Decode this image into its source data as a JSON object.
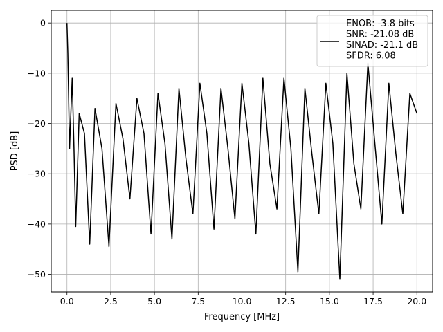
{
  "chart_data": {
    "type": "line",
    "xlabel": "Frequency [MHz]",
    "ylabel": "PSD [dB]",
    "xlim": [
      -0.9,
      20.9
    ],
    "ylim": [
      -53.5,
      2.5
    ],
    "xticks": [
      0.0,
      2.5,
      5.0,
      7.5,
      10.0,
      12.5,
      15.0,
      17.5,
      20.0
    ],
    "xtick_labels": [
      "0.0",
      "2.5",
      "5.0",
      "7.5",
      "10.0",
      "12.5",
      "15.0",
      "17.5",
      "20.0"
    ],
    "yticks": [
      0,
      -10,
      -20,
      -30,
      -40,
      -50
    ],
    "ytick_labels": [
      "0",
      "−10",
      "−20",
      "−30",
      "−40",
      "−50"
    ],
    "grid": true,
    "legend_position": "top-right",
    "legend_lines": [
      "ENOB: -3.8 bits",
      "SNR: -21.08 dB",
      "SINAD: -21.1 dB",
      "SFDR: 6.08"
    ],
    "series": [
      {
        "color": "#000000",
        "x": [
          0.0,
          0.05,
          0.1,
          0.15,
          0.2,
          0.3,
          0.4,
          0.5,
          0.7,
          1.0,
          1.3,
          1.6,
          2.0,
          2.4,
          2.8,
          3.2,
          3.6,
          4.0,
          4.4,
          4.8,
          5.2,
          5.6,
          6.0,
          6.4,
          6.8,
          7.2,
          7.6,
          8.0,
          8.4,
          8.8,
          9.2,
          9.6,
          10.0,
          10.4,
          10.8,
          11.2,
          11.6,
          12.0,
          12.4,
          12.8,
          13.2,
          13.6,
          14.0,
          14.4,
          14.8,
          15.2,
          15.6,
          16.0,
          16.4,
          16.8,
          17.2,
          17.6,
          18.0,
          18.4,
          18.8,
          19.2,
          19.6,
          20.0
        ],
        "y": [
          0.0,
          -6.0,
          -16.0,
          -25.0,
          -20.0,
          -11.0,
          -25.0,
          -40.5,
          -18.0,
          -22.0,
          -44.0,
          -17.0,
          -25.0,
          -44.5,
          -16.0,
          -23.0,
          -35.0,
          -15.0,
          -22.0,
          -42.0,
          -14.0,
          -24.0,
          -43.0,
          -13.0,
          -27.0,
          -38.0,
          -12.0,
          -22.0,
          -41.0,
          -13.0,
          -25.0,
          -39.0,
          -12.0,
          -24.0,
          -42.0,
          -11.0,
          -28.0,
          -37.0,
          -11.0,
          -25.0,
          -49.5,
          -13.0,
          -26.0,
          -38.0,
          -12.0,
          -24.0,
          -51.0,
          -10.0,
          -28.0,
          -37.0,
          -8.0,
          -24.0,
          -40.0,
          -12.0,
          -26.0,
          -38.0,
          -14.0,
          -18.0
        ]
      }
    ]
  }
}
